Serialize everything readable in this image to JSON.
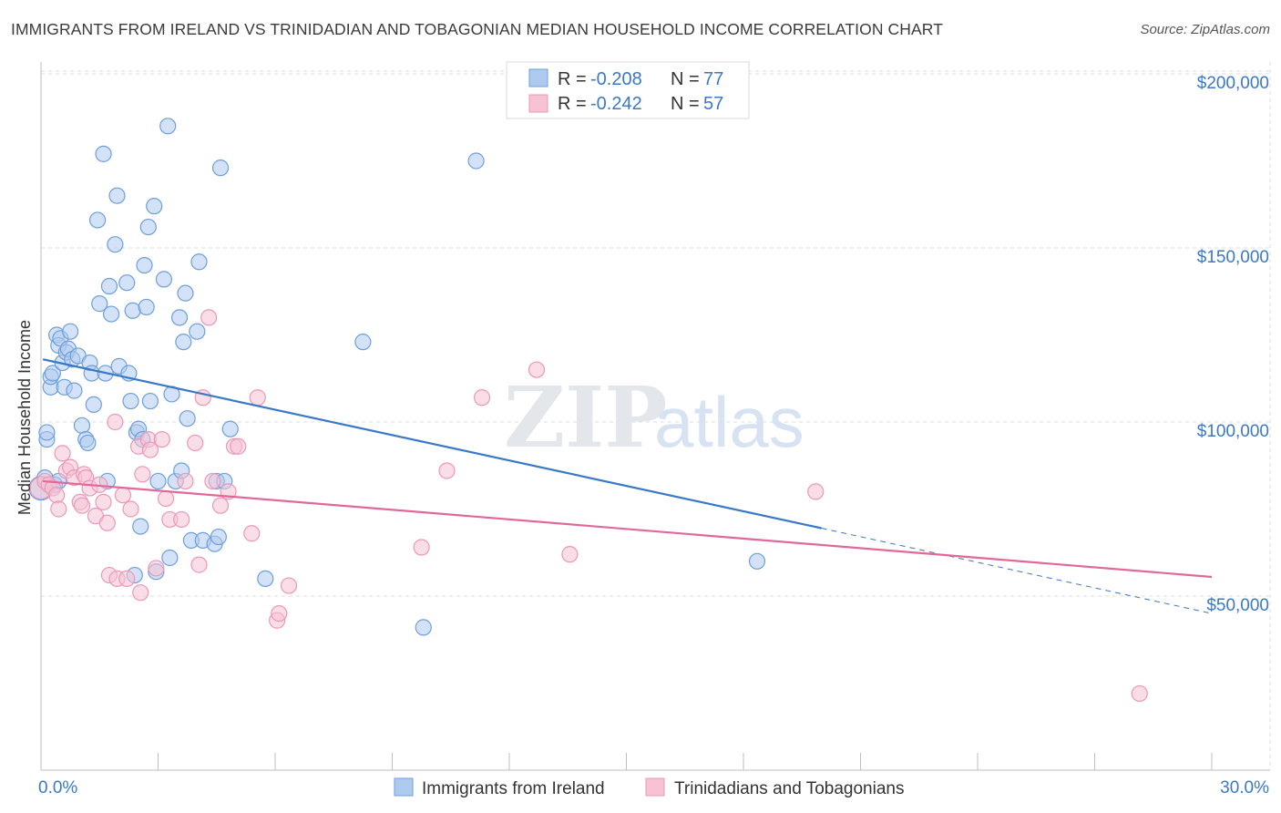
{
  "title": "IMMIGRANTS FROM IRELAND VS TRINIDADIAN AND TOBAGONIAN MEDIAN HOUSEHOLD INCOME CORRELATION CHART",
  "source": "Source: ZipAtlas.com",
  "watermark": {
    "zip": "ZIP",
    "atlas": "atlas"
  },
  "colors": {
    "blue": "#3a78c8",
    "blue_fill": "#aecbef",
    "blue_stroke": "#6e9fdc",
    "pink": "#e0699a",
    "pink_fill": "#f6c2d4",
    "pink_stroke": "#ec97b8",
    "grid": "#dcdcdc"
  },
  "legend": {
    "row1": {
      "r_label": "R = ",
      "r_value": "-0.208",
      "n_label": "N = ",
      "n_value": "77"
    },
    "row2": {
      "r_label": "R = ",
      "r_value": "-0.242",
      "n_label": "N = ",
      "n_value": "57"
    }
  },
  "bottom_legend": {
    "series1": "Immigrants from Ireland",
    "series2": "Trinidadians and Tobagonians"
  },
  "chart_data": {
    "type": "scatter",
    "title": "IMMIGRANTS FROM IRELAND VS TRINIDADIAN AND TOBAGONIAN MEDIAN HOUSEHOLD INCOME CORRELATION CHART",
    "xlabel": "",
    "ylabel": "Median Household Income",
    "xlim": [
      0,
      30
    ],
    "ylim": [
      0,
      210000
    ],
    "x_tick_labels": [
      "0.0%",
      "30.0%"
    ],
    "y_ticks": [
      50000,
      100000,
      150000,
      200000
    ],
    "y_tick_labels": [
      "$50,000",
      "$100,000",
      "$150,000",
      "$200,000"
    ],
    "grid": true,
    "legend_position": "top-center",
    "series": [
      {
        "name": "Immigrants from Ireland",
        "r": -0.208,
        "n": 77,
        "trend": {
          "x": [
            0.05,
            20.0,
            30.0
          ],
          "y": [
            118000,
            69500,
            45000
          ],
          "solid_until": 20.0
        },
        "points": [
          [
            0.0,
            81000
          ],
          [
            0.15,
            95000
          ],
          [
            0.15,
            97000
          ],
          [
            0.25,
            110000
          ],
          [
            0.25,
            113000
          ],
          [
            0.3,
            114000
          ],
          [
            0.4,
            125000
          ],
          [
            0.45,
            122000
          ],
          [
            0.5,
            124000
          ],
          [
            0.55,
            117000
          ],
          [
            0.6,
            110000
          ],
          [
            0.65,
            120000
          ],
          [
            0.7,
            121000
          ],
          [
            0.75,
            126000
          ],
          [
            0.8,
            118000
          ],
          [
            0.85,
            109000
          ],
          [
            0.95,
            119000
          ],
          [
            1.05,
            99000
          ],
          [
            1.15,
            95000
          ],
          [
            1.2,
            94000
          ],
          [
            1.25,
            117000
          ],
          [
            1.3,
            114000
          ],
          [
            1.35,
            105000
          ],
          [
            1.45,
            158000
          ],
          [
            1.5,
            134000
          ],
          [
            1.6,
            177000
          ],
          [
            1.65,
            114000
          ],
          [
            1.7,
            83000
          ],
          [
            1.75,
            139000
          ],
          [
            1.8,
            131000
          ],
          [
            1.9,
            151000
          ],
          [
            1.95,
            165000
          ],
          [
            2.0,
            116000
          ],
          [
            2.2,
            140000
          ],
          [
            2.25,
            114000
          ],
          [
            2.3,
            106000
          ],
          [
            2.35,
            132000
          ],
          [
            2.4,
            56000
          ],
          [
            2.45,
            97000
          ],
          [
            2.5,
            98000
          ],
          [
            2.55,
            70000
          ],
          [
            2.6,
            95000
          ],
          [
            2.65,
            145000
          ],
          [
            2.7,
            133000
          ],
          [
            2.75,
            156000
          ],
          [
            2.8,
            106000
          ],
          [
            2.9,
            162000
          ],
          [
            2.95,
            57000
          ],
          [
            3.0,
            83000
          ],
          [
            3.15,
            141000
          ],
          [
            3.25,
            185000
          ],
          [
            3.3,
            61000
          ],
          [
            3.35,
            108000
          ],
          [
            3.45,
            83000
          ],
          [
            3.55,
            130000
          ],
          [
            3.6,
            86000
          ],
          [
            3.65,
            123000
          ],
          [
            3.7,
            137000
          ],
          [
            3.75,
            101000
          ],
          [
            3.85,
            66000
          ],
          [
            4.0,
            126000
          ],
          [
            4.05,
            146000
          ],
          [
            4.15,
            66000
          ],
          [
            4.45,
            65000
          ],
          [
            4.5,
            83000
          ],
          [
            4.55,
            67000
          ],
          [
            4.6,
            173000
          ],
          [
            4.7,
            83000
          ],
          [
            4.85,
            98000
          ],
          [
            5.75,
            55000
          ],
          [
            8.25,
            123000
          ],
          [
            9.8,
            41000
          ],
          [
            11.15,
            175000
          ],
          [
            18.35,
            60000
          ],
          [
            0.1,
            84000
          ],
          [
            0.35,
            82000
          ],
          [
            0.45,
            83000
          ]
        ]
      },
      {
        "name": "Trinidadians and Tobagonians",
        "r": -0.242,
        "n": 57,
        "trend": {
          "x": [
            0.05,
            30.0
          ],
          "y": [
            83000,
            55500
          ]
        },
        "points": [
          [
            0.0,
            81000
          ],
          [
            0.1,
            83000
          ],
          [
            0.2,
            82000
          ],
          [
            0.3,
            81000
          ],
          [
            0.4,
            79000
          ],
          [
            0.45,
            75000
          ],
          [
            0.55,
            91000
          ],
          [
            0.65,
            86000
          ],
          [
            0.75,
            87000
          ],
          [
            0.85,
            84000
          ],
          [
            1.0,
            77000
          ],
          [
            1.05,
            76000
          ],
          [
            1.1,
            85000
          ],
          [
            1.15,
            84000
          ],
          [
            1.25,
            81000
          ],
          [
            1.4,
            73000
          ],
          [
            1.5,
            82000
          ],
          [
            1.6,
            77000
          ],
          [
            1.7,
            71000
          ],
          [
            1.75,
            56000
          ],
          [
            1.9,
            100000
          ],
          [
            1.95,
            55000
          ],
          [
            2.1,
            79000
          ],
          [
            2.2,
            55000
          ],
          [
            2.3,
            75000
          ],
          [
            2.5,
            93000
          ],
          [
            2.55,
            51000
          ],
          [
            2.6,
            85000
          ],
          [
            2.75,
            95000
          ],
          [
            2.8,
            92000
          ],
          [
            2.95,
            58000
          ],
          [
            3.1,
            95000
          ],
          [
            3.2,
            78000
          ],
          [
            3.3,
            72000
          ],
          [
            3.6,
            72000
          ],
          [
            3.95,
            94000
          ],
          [
            4.05,
            59000
          ],
          [
            4.15,
            107000
          ],
          [
            4.3,
            130000
          ],
          [
            4.4,
            83000
          ],
          [
            4.6,
            76000
          ],
          [
            4.8,
            80000
          ],
          [
            4.95,
            93000
          ],
          [
            5.05,
            93000
          ],
          [
            5.4,
            68000
          ],
          [
            5.55,
            107000
          ],
          [
            6.05,
            43000
          ],
          [
            6.1,
            45000
          ],
          [
            6.35,
            53000
          ],
          [
            9.75,
            64000
          ],
          [
            10.4,
            86000
          ],
          [
            11.3,
            107000
          ],
          [
            12.7,
            115000
          ],
          [
            13.55,
            62000
          ],
          [
            19.85,
            80000
          ],
          [
            28.15,
            22000
          ],
          [
            3.7,
            83000
          ]
        ]
      }
    ]
  }
}
